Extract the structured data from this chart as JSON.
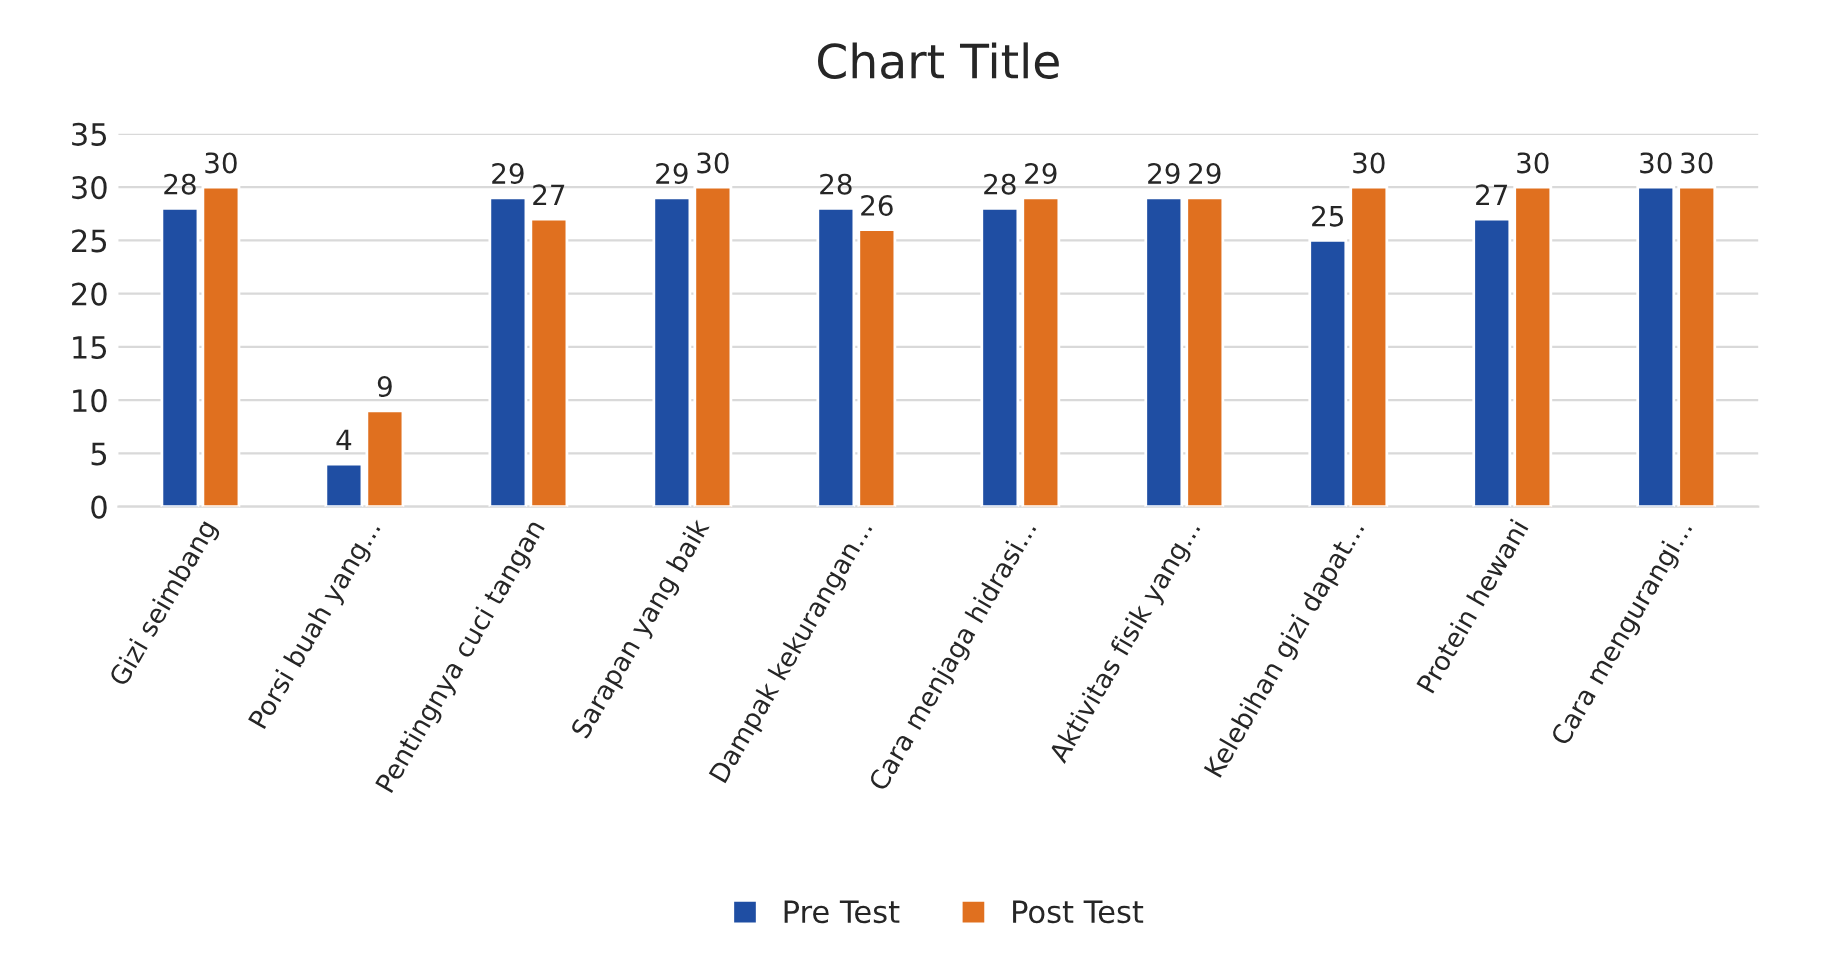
{
  "chart_data": {
    "type": "bar",
    "title": "Chart Title",
    "categories": [
      "Gizi seimbang",
      "Porsi buah yang...",
      "Pentingnya cuci tangan",
      "Sarapan yang baik",
      "Dampak kekurangan...",
      "Cara menjaga hidrasi...",
      "Aktivitas fisik yang...",
      "Kelebihan gizi dapat...",
      "Protein hewani",
      "Cara mengurangi..."
    ],
    "series": [
      {
        "name": "Pre Test",
        "color": "#1f4ea3",
        "values": [
          28,
          4,
          29,
          29,
          28,
          28,
          29,
          25,
          27,
          30
        ]
      },
      {
        "name": "Post Test",
        "color": "#e0701f",
        "values": [
          30,
          9,
          27,
          30,
          26,
          29,
          29,
          30,
          30,
          30
        ]
      }
    ],
    "ylim": [
      0,
      35
    ],
    "yticks": [
      0,
      5,
      10,
      15,
      20,
      25,
      30,
      35
    ],
    "grid": "y",
    "legend": "bottom",
    "data_labels": true
  }
}
